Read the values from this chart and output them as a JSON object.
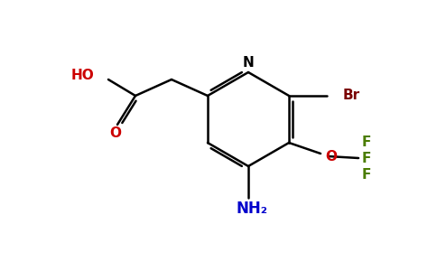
{
  "background_color": "#ffffff",
  "bond_color": "#000000",
  "label_NH2": "NH₂",
  "label_O": "O",
  "label_Br": "Br",
  "label_F1": "F",
  "label_F2": "F",
  "label_F3": "F",
  "label_HO": "HO",
  "label_O_carbonyl": "O",
  "label_N": "N",
  "color_NH2": "#0000cc",
  "color_O": "#cc0000",
  "color_Br": "#7a0000",
  "color_F": "#4a7c00",
  "color_HO": "#cc0000",
  "color_O_carbonyl": "#cc0000",
  "color_N": "#000000",
  "lw": 1.8
}
